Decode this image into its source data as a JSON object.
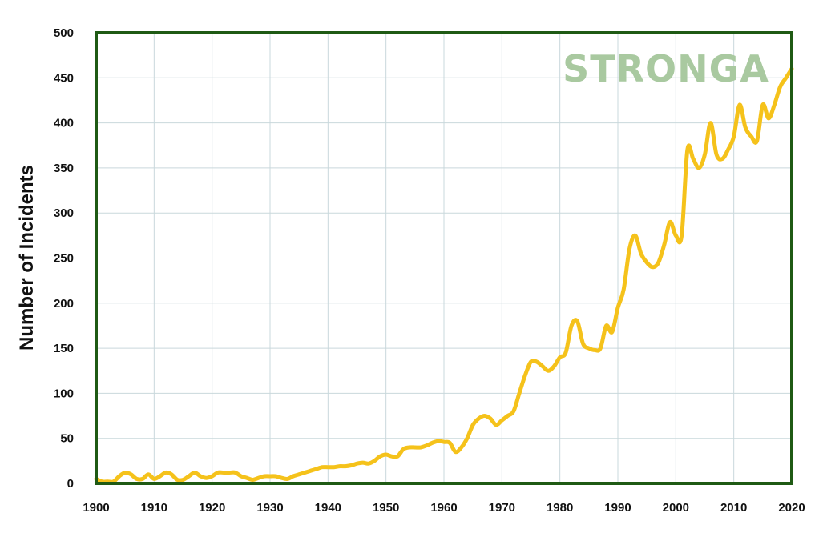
{
  "chart_data": {
    "type": "line",
    "title": "",
    "xlabel": "",
    "ylabel": "Number of Incidents",
    "xlim": [
      1900,
      2020
    ],
    "ylim": [
      0,
      500
    ],
    "x_ticks": [
      "1900",
      "1910",
      "1920",
      "1930",
      "1940",
      "1950",
      "1960",
      "1970",
      "1980",
      "1990",
      "2000",
      "2010",
      "2020"
    ],
    "y_ticks": [
      "0",
      "50",
      "100",
      "150",
      "200",
      "250",
      "300",
      "350",
      "400",
      "450",
      "500"
    ],
    "grid": true,
    "watermark": "STRONGA",
    "colors": {
      "line": "#f5c21b",
      "frame": "#1f5a14",
      "grid": "#c9d8dc",
      "watermark": "#a9c9a0"
    },
    "series": [
      {
        "x": [
          1900,
          1901,
          1902,
          1903,
          1904,
          1905,
          1906,
          1907,
          1908,
          1909,
          1910,
          1911,
          1912,
          1913,
          1914,
          1915,
          1916,
          1917,
          1918,
          1919,
          1920,
          1921,
          1922,
          1923,
          1924,
          1925,
          1926,
          1927,
          1928,
          1929,
          1930,
          1931,
          1932,
          1933,
          1934,
          1935,
          1936,
          1937,
          1938,
          1939,
          1940,
          1941,
          1942,
          1943,
          1944,
          1945,
          1946,
          1947,
          1948,
          1949,
          1950,
          1951,
          1952,
          1953,
          1954,
          1955,
          1956,
          1957,
          1958,
          1959,
          1960,
          1961,
          1962,
          1963,
          1964,
          1965,
          1966,
          1967,
          1968,
          1969,
          1970,
          1971,
          1972,
          1973,
          1974,
          1975,
          1976,
          1977,
          1978,
          1979,
          1980,
          1981,
          1982,
          1983,
          1984,
          1985,
          1986,
          1987,
          1988,
          1989,
          1990,
          1991,
          1992,
          1993,
          1994,
          1995,
          1996,
          1997,
          1998,
          1999,
          2000,
          2001,
          2002,
          2003,
          2004,
          2005,
          2006,
          2007,
          2008,
          2009,
          2010,
          2011,
          2012,
          2013,
          2014,
          2015,
          2016,
          2017,
          2018,
          2019,
          2020
        ],
        "y": [
          5,
          2,
          2,
          2,
          8,
          12,
          10,
          5,
          5,
          10,
          5,
          8,
          12,
          10,
          4,
          4,
          8,
          12,
          8,
          6,
          8,
          12,
          12,
          12,
          12,
          8,
          6,
          4,
          6,
          8,
          8,
          8,
          6,
          5,
          8,
          10,
          12,
          14,
          16,
          18,
          18,
          18,
          19,
          19,
          20,
          22,
          23,
          22,
          25,
          30,
          32,
          30,
          30,
          38,
          40,
          40,
          40,
          42,
          45,
          47,
          46,
          45,
          35,
          40,
          50,
          65,
          72,
          75,
          72,
          65,
          70,
          75,
          80,
          100,
          120,
          135,
          135,
          130,
          125,
          130,
          140,
          145,
          175,
          180,
          155,
          150,
          148,
          150,
          175,
          168,
          195,
          215,
          260,
          275,
          255,
          245,
          240,
          245,
          265,
          290,
          275,
          275,
          370,
          360,
          350,
          365,
          400,
          365,
          360,
          370,
          385,
          420,
          395,
          385,
          380,
          420,
          405,
          420,
          440,
          450,
          460
        ]
      }
    ]
  }
}
